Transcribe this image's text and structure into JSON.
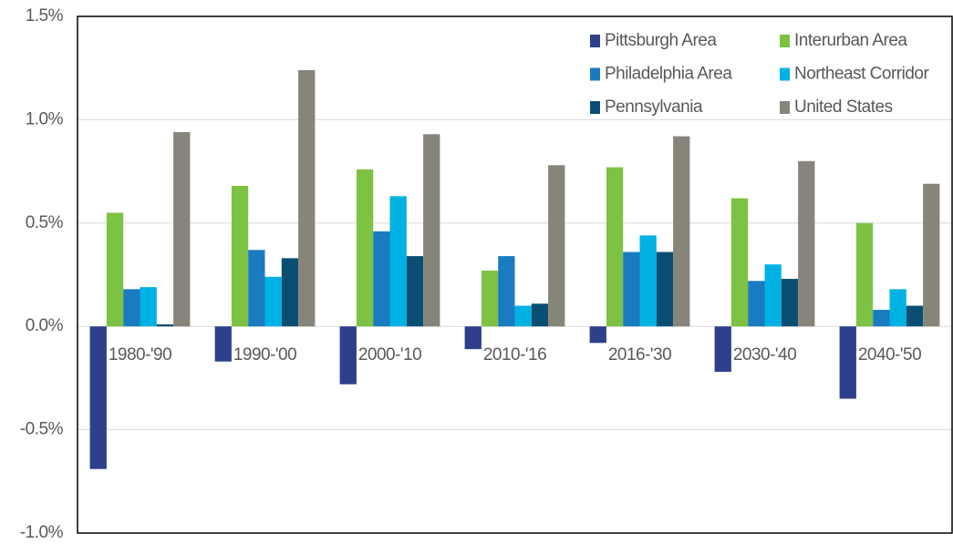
{
  "chart_data": {
    "type": "bar",
    "categories": [
      "1980-'90",
      "1990-'00",
      "2000-'10",
      "2010-'16",
      "2016-'30",
      "2030-'40",
      "2040-'50"
    ],
    "series": [
      {
        "name": "Pittsburgh Area",
        "color": "#2e3f8c",
        "values": [
          -0.69,
          -0.17,
          -0.28,
          -0.11,
          -0.08,
          -0.22,
          -0.35
        ]
      },
      {
        "name": "Interurban Area",
        "color": "#7dc242",
        "values": [
          0.55,
          0.68,
          0.76,
          0.27,
          0.77,
          0.62,
          0.5
        ]
      },
      {
        "name": "Philadelphia Area",
        "color": "#1a7bc0",
        "values": [
          0.18,
          0.37,
          0.46,
          0.34,
          0.36,
          0.22,
          0.08
        ]
      },
      {
        "name": "Northeast Corridor",
        "color": "#00b2e3",
        "values": [
          0.19,
          0.24,
          0.63,
          0.1,
          0.44,
          0.3,
          0.18
        ]
      },
      {
        "name": "Pennsylvania",
        "color": "#0a4f73",
        "values": [
          0.01,
          0.33,
          0.34,
          0.11,
          0.36,
          0.23,
          0.1
        ]
      },
      {
        "name": "United States",
        "color": "#87857a",
        "values": [
          0.94,
          1.24,
          0.93,
          0.78,
          0.92,
          0.8,
          0.69
        ]
      }
    ],
    "ylim": [
      -1.0,
      1.5
    ],
    "yticks": [
      {
        "value": -1.0,
        "label": "-1.0%"
      },
      {
        "value": -0.5,
        "label": "-0.5%"
      },
      {
        "value": 0,
        "label": "0.0%"
      },
      {
        "value": 0.5,
        "label": "0.5%"
      },
      {
        "value": 1.0,
        "label": "1.0%"
      },
      {
        "value": 1.5,
        "label": "1.5%"
      }
    ],
    "grid": true,
    "legend": "upper right"
  }
}
